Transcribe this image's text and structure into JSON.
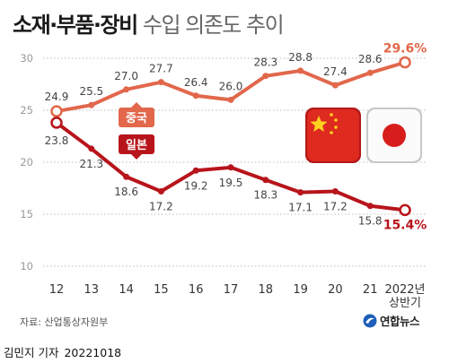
{
  "title": {
    "bold": "소재·부품·장비",
    "light": "수입 의존도 추이"
  },
  "source": "자료: 산업통상자원부",
  "byline": {
    "author": "김민지 기자",
    "date": "20221018"
  },
  "agency": "연합뉴스",
  "chart_data": {
    "type": "line",
    "categories": [
      "12",
      "13",
      "14",
      "15",
      "16",
      "17",
      "18",
      "19",
      "20",
      "21",
      "2022년\n상반기"
    ],
    "ylim": [
      10,
      30
    ],
    "yticks": [
      10,
      15,
      20,
      25,
      30
    ],
    "grid": true,
    "series": [
      {
        "name": "중국",
        "color": "#e2674b",
        "values": [
          24.9,
          25.5,
          27.0,
          27.7,
          26.4,
          26.0,
          28.3,
          28.8,
          27.4,
          28.6,
          29.6
        ],
        "labels": [
          "24.9",
          "25.5",
          "27.0",
          "27.7",
          "26.4",
          "26.0",
          "28.3",
          "28.8",
          "27.4",
          "28.6",
          "29.6%"
        ],
        "icon": "china-flag-icon"
      },
      {
        "name": "일본",
        "color": "#b8141b",
        "values": [
          23.8,
          21.3,
          18.6,
          17.2,
          19.2,
          19.5,
          18.3,
          17.1,
          17.2,
          15.8,
          15.4
        ],
        "labels": [
          "23.8",
          "21.3",
          "18.6",
          "17.2",
          "19.2",
          "19.5",
          "18.3",
          "17.1",
          "17.2",
          "15.8",
          "15.4%"
        ],
        "icon": "japan-flag-icon"
      }
    ]
  }
}
